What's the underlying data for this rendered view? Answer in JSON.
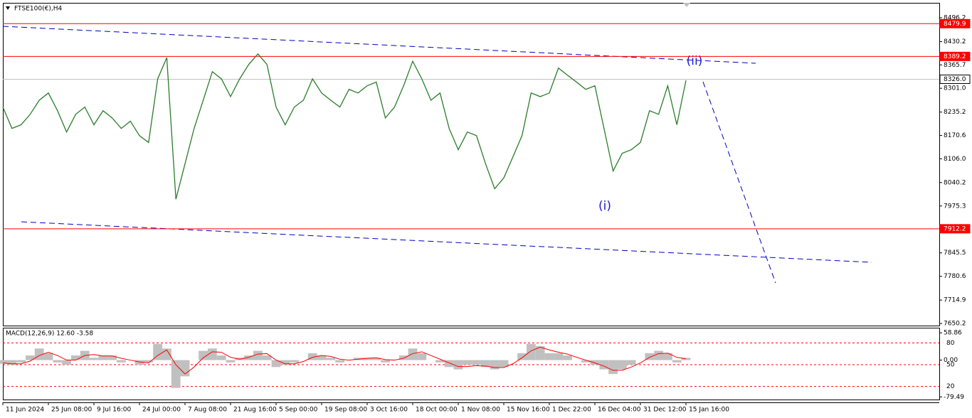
{
  "chart_data": [
    {
      "type": "line",
      "title": "FTSE100(€),H4",
      "categories": [
        "11 Jun 2024",
        null,
        null,
        null,
        null,
        "25 Jun 08:00",
        null,
        null,
        null,
        null,
        "9 Jul 16:00",
        null,
        null,
        null,
        null,
        "24 Jul 00:00",
        null,
        null,
        null,
        null,
        "7 Aug 08:00",
        null,
        null,
        null,
        null,
        "21 Aug 16:00",
        null,
        null,
        null,
        null,
        "5 Sep 00:00",
        null,
        null,
        null,
        null,
        "19 Sep 08:00",
        null,
        null,
        null,
        null,
        "3 Oct 16:00",
        null,
        null,
        null,
        null,
        "18 Oct 00:00",
        null,
        null,
        null,
        null,
        "1 Nov 08:00",
        null,
        null,
        null,
        null,
        "15 Nov 16:00",
        null,
        null,
        null,
        null,
        "1 Dec 22:00",
        null,
        null,
        null,
        null,
        "16 Dec 04:00",
        null,
        null,
        null,
        null,
        "31 Dec 12:00",
        null,
        null,
        null,
        null,
        "15 Jan 16:00"
      ],
      "values": [
        8249,
        8190,
        8200,
        8229,
        8268,
        8288,
        8239,
        8180,
        8229,
        8249,
        8200,
        8239,
        8219,
        8190,
        8210,
        8170,
        8151,
        8327,
        8386,
        7994,
        8092,
        8190,
        8268,
        8347,
        8327,
        8278,
        8327,
        8367,
        8396,
        8367,
        8249,
        8200,
        8249,
        8268,
        8327,
        8288,
        8268,
        8249,
        8298,
        8288,
        8308,
        8318,
        8219,
        8249,
        8308,
        8376,
        8327,
        8268,
        8288,
        8190,
        8131,
        8180,
        8170,
        8092,
        8023,
        8053,
        8111,
        8170,
        8288,
        8278,
        8288,
        8357,
        8337,
        8318,
        8298,
        8308,
        8190,
        8072,
        8121,
        8131,
        8151,
        8239,
        8229,
        8308,
        8200,
        8323
      ],
      "color": "#2a7d2a",
      "ylim": [
        7644.3,
        8535.5
      ],
      "yticks": [
        8496.2,
        8430.2,
        8365.7,
        {
          "value": 8301,
          "label": "8301.0"
        },
        8235.2,
        8170.6,
        {
          "value": 8106,
          "label": "8106.0"
        },
        8040.2,
        7975.3,
        7845.5,
        7780.6,
        7714.9,
        7650.2
      ],
      "levels": [
        {
          "value": 8479.9,
          "label": "8479.9",
          "color": "#ff0000"
        },
        {
          "value": 8389.2,
          "label": "8389.2",
          "color": "#ff0000"
        },
        {
          "value": 8326,
          "label": "8326.0",
          "color": "#c0c0c0"
        },
        {
          "value": 7912.2,
          "label": "7912.2",
          "color": "#ff0000"
        }
      ],
      "annotations": [
        "(i)",
        "(ii)"
      ]
    },
    {
      "type": "macd",
      "title": "MACD(12,26,9) 12.60 -3.58",
      "series": [
        {
          "kind": "bar",
          "color": "#c0c0c0",
          "values": [
            -8,
            -10,
            -5,
            10,
            25,
            15,
            -5,
            -10,
            10,
            20,
            5,
            10,
            10,
            -5,
            0,
            -10,
            -5,
            35,
            25,
            -60,
            -35,
            0,
            20,
            25,
            10,
            -5,
            5,
            10,
            20,
            10,
            -15,
            -10,
            -5,
            0,
            15,
            10,
            5,
            -5,
            0,
            5,
            5,
            5,
            -5,
            0,
            10,
            25,
            15,
            0,
            -5,
            -15,
            -20,
            -10,
            -10,
            -15,
            -20,
            -15,
            0,
            15,
            35,
            30,
            15,
            15,
            10,
            0,
            -5,
            -10,
            -20,
            -30,
            -20,
            -10,
            0,
            15,
            20,
            15,
            -5,
            5
          ]
        },
        {
          "kind": "line",
          "color": "#ff0000",
          "values": [
            -6,
            -8,
            -8,
            -2,
            10,
            17,
            10,
            0,
            0,
            10,
            12,
            9,
            9,
            4,
            0,
            -4,
            -6,
            10,
            22,
            -10,
            -30,
            -15,
            5,
            18,
            17,
            6,
            2,
            6,
            13,
            14,
            0,
            -8,
            -8,
            -3,
            6,
            10,
            8,
            2,
            0,
            2,
            4,
            5,
            1,
            0,
            4,
            14,
            18,
            10,
            2,
            -6,
            -14,
            -14,
            -12,
            -13,
            -16,
            -16,
            -8,
            5,
            20,
            28,
            22,
            17,
            13,
            6,
            0,
            -6,
            -13,
            -22,
            -22,
            -15,
            -6,
            6,
            14,
            15,
            6,
            3
          ]
        }
      ],
      "ylim": [
        -85.1,
        68.4
      ],
      "yticks": [
        58.86,
        {
          "value": 0,
          "label": "0.00"
        },
        -79.49
      ],
      "y2lim": [
        2,
        100
      ],
      "y2ticks": [
        80,
        50,
        20
      ],
      "y2color": "#ff0000"
    }
  ]
}
